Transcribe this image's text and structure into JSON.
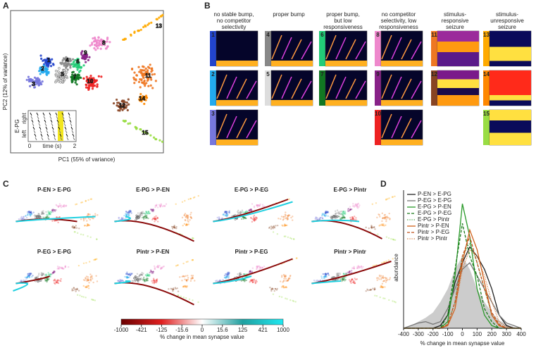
{
  "panel_a": {
    "label": "A",
    "x_label": "PC1 (55% of variance)",
    "y_label": "PC2 (12% of variance)",
    "clusters": [
      "1",
      "2",
      "3",
      "4",
      "5",
      "6",
      "7",
      "8",
      "9",
      "10",
      "11",
      "12",
      "13",
      "14",
      "15"
    ],
    "inset": {
      "y_label": "E-PG",
      "rows": [
        "right",
        "left"
      ],
      "x_label": "time (s)",
      "xticks": [
        0,
        2
      ]
    }
  },
  "panel_b": {
    "label": "B",
    "groups": [
      {
        "title": [
          "no stable bump,",
          "no competitor",
          "selectivity"
        ],
        "clusters": [
          "1",
          "2",
          "3"
        ]
      },
      {
        "title": [
          "proper bump"
        ],
        "clusters": [
          "4",
          "5"
        ]
      },
      {
        "title": [
          "proper bump,",
          "but low",
          "responsiveness"
        ],
        "clusters": [
          "6",
          "7"
        ]
      },
      {
        "title": [
          "no competitor",
          "selectivity, low",
          "responsiveness"
        ],
        "clusters": [
          "8",
          "9",
          "10"
        ]
      },
      {
        "title": [
          "stimulus-",
          "responsive",
          "seizure"
        ],
        "clusters": [
          "11",
          "12"
        ]
      },
      {
        "title": [
          "stimulus-",
          "unresponsive",
          "seizure"
        ],
        "clusters": [
          "13",
          "14",
          "15"
        ]
      }
    ]
  },
  "panel_c": {
    "label": "C",
    "plots": [
      {
        "title": "P-EN > E-PG",
        "color": "#2a9a2a"
      },
      {
        "title": "E-PG > P-EN",
        "color": "#2a9a2a"
      },
      {
        "title": "E-PG > P-EG",
        "color": "#2a9a2a"
      },
      {
        "title": "E-PG > Pintr",
        "color": "#2a9a2a"
      },
      {
        "title": "P-EG > E-PG",
        "color": "#2a9a2a"
      },
      {
        "title": "Pintr > P-EN",
        "color": "#d0601a"
      },
      {
        "title": "Pintr > P-EG",
        "color": "#d0601a"
      },
      {
        "title": "Pintr > Pintr",
        "color": "#d0601a"
      }
    ],
    "colorbar": {
      "ticks": [
        -1000,
        -421,
        -125,
        -15.6,
        0,
        15.6,
        125,
        421,
        1000
      ],
      "label": "% change in mean synapse value"
    }
  },
  "chart_data": {
    "type": "line",
    "panel_label": "D",
    "x_label": "% change in mean synapse value",
    "y_label": "abundance",
    "x": [
      -400,
      -350,
      -300,
      -250,
      -200,
      -150,
      -100,
      -50,
      0,
      50,
      100,
      150,
      200,
      250,
      300,
      350,
      400
    ],
    "xlim": [
      -400,
      400
    ],
    "xticks": [
      -400,
      -300,
      -200,
      -100,
      0,
      100,
      200,
      300,
      400
    ],
    "ylim": [
      0,
      1
    ],
    "background": {
      "color": "#cccccc",
      "values": [
        0,
        0.02,
        0.05,
        0.08,
        0.12,
        0.2,
        0.3,
        0.45,
        0.55,
        0.45,
        0.3,
        0.2,
        0.12,
        0.06,
        0.03,
        0.01,
        0
      ]
    },
    "series": [
      {
        "name": "P-EN > E-PG",
        "color": "#222222",
        "dash": "solid",
        "values": [
          0,
          0,
          0,
          0,
          0,
          0.02,
          0.1,
          0.35,
          0.5,
          0.62,
          0.55,
          0.45,
          0.3,
          0.1,
          0.02,
          0,
          0
        ]
      },
      {
        "name": "P-EG > E-PG",
        "color": "#777777",
        "dash": "solid",
        "values": [
          0,
          0.02,
          0.04,
          0.05,
          0.03,
          0.05,
          0.15,
          0.3,
          0.45,
          0.5,
          0.4,
          0.3,
          0.2,
          0.1,
          0.04,
          0.02,
          0
        ]
      },
      {
        "name": "E-PG > P-EN",
        "color": "#2a9a2a",
        "dash": "solid",
        "values": [
          0,
          0,
          0,
          0,
          0,
          0,
          0.05,
          0.4,
          0.95,
          0.7,
          0.3,
          0.1,
          0.02,
          0,
          0,
          0,
          0
        ]
      },
      {
        "name": "E-PG > P-EG",
        "color": "#1a7a1a",
        "dash": "dashed",
        "values": [
          0,
          0,
          0,
          0,
          0,
          0,
          0.1,
          0.45,
          0.8,
          0.55,
          0.4,
          0.15,
          0.05,
          0,
          0,
          0,
          0
        ]
      },
      {
        "name": "E-PG > Pintr",
        "color": "#3a9a3a",
        "dash": "dotted",
        "values": [
          0,
          0,
          0,
          0,
          0,
          0,
          0.03,
          0.2,
          0.55,
          0.65,
          0.5,
          0.3,
          0.1,
          0.02,
          0,
          0,
          0
        ]
      },
      {
        "name": "Pintr > P-EN",
        "color": "#d0601a",
        "dash": "solid",
        "values": [
          0,
          0,
          0,
          0,
          0,
          0,
          0.02,
          0.15,
          0.5,
          0.75,
          0.6,
          0.35,
          0.1,
          0.02,
          0,
          0,
          0
        ]
      },
      {
        "name": "Pintr > P-EG",
        "color": "#c0501a",
        "dash": "dashed",
        "values": [
          0,
          0,
          0,
          0,
          0,
          0,
          0.03,
          0.2,
          0.55,
          0.7,
          0.5,
          0.3,
          0.12,
          0.03,
          0,
          0,
          0
        ]
      },
      {
        "name": "Pintr > Pintr",
        "color": "#d07030",
        "dash": "dotted",
        "values": [
          0,
          0,
          0,
          0,
          0,
          0,
          0.02,
          0.15,
          0.45,
          0.6,
          0.55,
          0.4,
          0.2,
          0.05,
          0.01,
          0,
          0
        ]
      }
    ]
  }
}
